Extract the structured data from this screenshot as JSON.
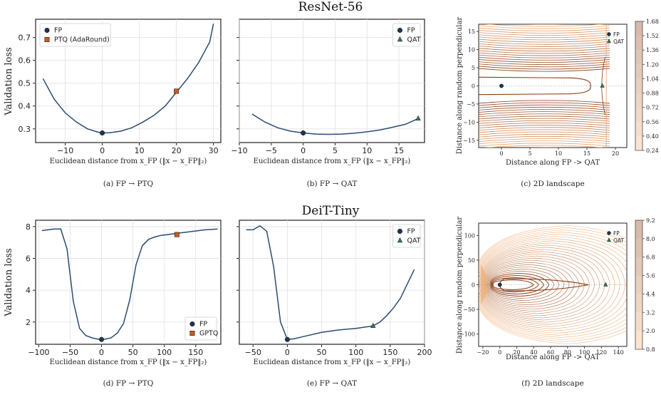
{
  "figure": {
    "row_titles": [
      "ResNet-56",
      "DeiT-Tiny"
    ],
    "ylabel": "Validation loss",
    "xlabel_1d": "Euclidean distance from x_FP (‖x − x_FP‖₂)",
    "xlabel_2d": "Distance along FP -> QAT",
    "ylabel_2d": "Distance along random perpendicular",
    "captions": [
      "(a) FP → PTQ",
      "(b) FP → QAT",
      "(c) 2D landscape",
      "(d) FP → PTQ",
      "(e) FP → QAT",
      "(f) 2D landscape"
    ]
  },
  "colors": {
    "curve": "#2b4b73",
    "fp_marker": "#1f3550",
    "ptq_marker": "#c85a2a",
    "qat_marker": "#3f7a4f",
    "contour_dark": "#8a3a12",
    "contour_light": "#f0b07a"
  },
  "chart_data": [
    {
      "type": "line",
      "caption": "(a) FP → PTQ",
      "xlim": [
        -18,
        32
      ],
      "ylim": [
        0.24,
        0.78
      ],
      "xticks": [
        -10,
        0,
        10,
        20,
        30
      ],
      "yticks": [
        0.3,
        0.4,
        0.5,
        0.6,
        0.7
      ],
      "x": [
        -16,
        -13,
        -10,
        -7,
        -4,
        -1,
        0,
        2,
        5,
        8,
        11,
        14,
        17,
        20,
        23,
        26,
        29,
        30
      ],
      "y": [
        0.52,
        0.43,
        0.37,
        0.33,
        0.3,
        0.285,
        0.282,
        0.283,
        0.29,
        0.305,
        0.33,
        0.36,
        0.4,
        0.46,
        0.52,
        0.59,
        0.68,
        0.76
      ],
      "markers": [
        {
          "label": "FP",
          "x": 0,
          "y": 0.282,
          "shape": "circle"
        },
        {
          "label": "PTQ (AdaRound)",
          "x": 20,
          "y": 0.465,
          "shape": "square"
        }
      ],
      "legend": [
        "FP",
        "PTQ (AdaRound)"
      ],
      "legend_position": "top-left"
    },
    {
      "type": "line",
      "caption": "(b) FP → QAT",
      "xlim": [
        -10,
        19
      ],
      "ylim": [
        0.24,
        0.78
      ],
      "xticks": [
        -10,
        -5,
        0,
        5,
        10,
        15
      ],
      "x": [
        -8,
        -6,
        -4,
        -2,
        0,
        2,
        4,
        6,
        8,
        10,
        12,
        14,
        16,
        18
      ],
      "y": [
        0.365,
        0.33,
        0.305,
        0.29,
        0.282,
        0.277,
        0.276,
        0.277,
        0.281,
        0.287,
        0.295,
        0.307,
        0.32,
        0.345
      ],
      "markers": [
        {
          "label": "FP",
          "x": 0,
          "y": 0.282,
          "shape": "circle"
        },
        {
          "label": "QAT",
          "x": 18,
          "y": 0.345,
          "shape": "triangle"
        }
      ],
      "legend": [
        "FP",
        "QAT"
      ],
      "legend_position": "top-right"
    },
    {
      "type": "contour",
      "caption": "(c) 2D landscape",
      "xlim": [
        -4,
        22
      ],
      "ylim": [
        -17,
        17
      ],
      "xticks": [
        0,
        5,
        10,
        15,
        20
      ],
      "yticks": [
        -15,
        -10,
        -5,
        0,
        5,
        10,
        15
      ],
      "colorbar_ticks": [
        "0.24",
        "0.40",
        "0.56",
        "0.72",
        "0.88",
        "1.04",
        "1.20",
        "1.36",
        "1.52",
        "1.68"
      ],
      "markers": [
        {
          "label": "FP",
          "x": 0,
          "y": 0,
          "shape": "circle"
        },
        {
          "label": "QAT",
          "x": 17.7,
          "y": 0,
          "shape": "triangle"
        }
      ],
      "legend": [
        "FP",
        "QAT"
      ],
      "legend_position": "top-right"
    },
    {
      "type": "line",
      "caption": "(d) FP → PTQ",
      "xlim": [
        -105,
        190
      ],
      "ylim": [
        0.6,
        8.4
      ],
      "xticks": [
        -100,
        -50,
        0,
        50,
        100,
        150
      ],
      "yticks": [
        2,
        4,
        6,
        8
      ],
      "x": [
        -95,
        -85,
        -75,
        -65,
        -55,
        -45,
        -35,
        -25,
        -15,
        -5,
        0,
        5,
        15,
        25,
        35,
        45,
        55,
        65,
        75,
        85,
        95,
        105,
        115,
        125,
        135,
        145,
        155,
        165,
        175,
        185
      ],
      "y": [
        7.75,
        7.8,
        7.85,
        7.85,
        6.6,
        3.3,
        1.6,
        1.15,
        1.0,
        0.92,
        0.9,
        0.92,
        1.0,
        1.3,
        1.9,
        3.4,
        5.6,
        6.8,
        7.2,
        7.35,
        7.45,
        7.5,
        7.55,
        7.6,
        7.65,
        7.7,
        7.75,
        7.8,
        7.82,
        7.85
      ],
      "markers": [
        {
          "label": "FP",
          "x": 0,
          "y": 0.9,
          "shape": "circle"
        },
        {
          "label": "GPTQ",
          "x": 120,
          "y": 7.5,
          "shape": "square"
        }
      ],
      "legend": [
        "FP",
        "GPTQ"
      ],
      "legend_position": "bottom-right"
    },
    {
      "type": "line",
      "caption": "(e) FP → QAT",
      "xlim": [
        -70,
        200
      ],
      "ylim": [
        0.6,
        8.4
      ],
      "xticks": [
        -50,
        0,
        50,
        100,
        150,
        200
      ],
      "x": [
        -60,
        -50,
        -40,
        -30,
        -20,
        -10,
        0,
        10,
        25,
        50,
        75,
        100,
        125,
        135,
        145,
        155,
        165,
        175,
        185
      ],
      "y": [
        7.8,
        7.8,
        8.05,
        7.7,
        5.5,
        2.0,
        0.9,
        0.95,
        1.1,
        1.35,
        1.5,
        1.6,
        1.75,
        2.0,
        2.4,
        2.9,
        3.5,
        4.4,
        5.3
      ],
      "markers": [
        {
          "label": "FP",
          "x": 0,
          "y": 0.9,
          "shape": "circle"
        },
        {
          "label": "QAT",
          "x": 125,
          "y": 1.75,
          "shape": "triangle"
        }
      ],
      "legend": [
        "FP",
        "QAT"
      ],
      "legend_position": "top-right"
    },
    {
      "type": "contour",
      "caption": "(f) 2D landscape",
      "xlim": [
        -25,
        150
      ],
      "ylim": [
        -125,
        125
      ],
      "xticks": [
        -20,
        0,
        20,
        40,
        60,
        80,
        100,
        120,
        140
      ],
      "yticks": [
        -100,
        -50,
        0,
        50,
        100
      ],
      "colorbar_ticks": [
        "0.8",
        "2.0",
        "3.2",
        "4.4",
        "5.6",
        "6.8",
        "8.0",
        "9.2"
      ],
      "markers": [
        {
          "label": "FP",
          "x": 0,
          "y": 0,
          "shape": "circle"
        },
        {
          "label": "QAT",
          "x": 125,
          "y": 0,
          "shape": "triangle"
        }
      ],
      "legend": [
        "FP",
        "QAT"
      ],
      "legend_position": "top-right"
    }
  ]
}
